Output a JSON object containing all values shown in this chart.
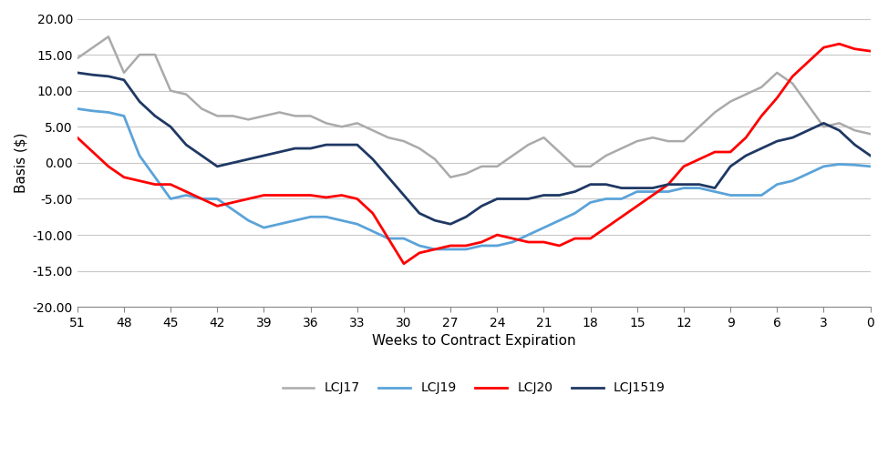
{
  "weeks": [
    51,
    50,
    49,
    48,
    47,
    46,
    45,
    44,
    43,
    42,
    41,
    40,
    39,
    38,
    37,
    36,
    35,
    34,
    33,
    32,
    31,
    30,
    29,
    28,
    27,
    26,
    25,
    24,
    23,
    22,
    21,
    20,
    19,
    18,
    17,
    16,
    15,
    14,
    13,
    12,
    11,
    10,
    9,
    8,
    7,
    6,
    5,
    4,
    3,
    2,
    1,
    0
  ],
  "LCJ17": [
    14.5,
    16.0,
    17.5,
    12.5,
    15.0,
    15.0,
    10.0,
    9.5,
    7.5,
    6.5,
    6.5,
    6.0,
    6.5,
    7.0,
    6.5,
    6.5,
    5.5,
    5.0,
    5.5,
    4.5,
    3.5,
    3.0,
    2.0,
    0.5,
    -2.0,
    -1.5,
    -0.5,
    -0.5,
    1.0,
    2.5,
    3.5,
    1.5,
    -0.5,
    -0.5,
    1.0,
    2.0,
    3.0,
    3.5,
    3.0,
    3.0,
    5.0,
    7.0,
    8.5,
    9.5,
    10.5,
    12.5,
    11.0,
    8.0,
    5.0,
    5.5,
    4.5,
    4.0
  ],
  "LCJ19": [
    7.5,
    7.2,
    7.0,
    6.5,
    1.0,
    -2.0,
    -5.0,
    -4.5,
    -5.0,
    -5.0,
    -6.5,
    -8.0,
    -9.0,
    -8.5,
    -8.0,
    -7.5,
    -7.5,
    -8.0,
    -8.5,
    -9.5,
    -10.5,
    -10.5,
    -11.5,
    -12.0,
    -12.0,
    -12.0,
    -11.5,
    -11.5,
    -11.0,
    -10.0,
    -9.0,
    -8.0,
    -7.0,
    -5.5,
    -5.0,
    -5.0,
    -4.0,
    -4.0,
    -4.0,
    -3.5,
    -3.5,
    -4.0,
    -4.5,
    -4.5,
    -4.5,
    -3.0,
    -2.5,
    -1.5,
    -0.5,
    -0.2,
    -0.3,
    -0.5
  ],
  "LCJ20": [
    3.5,
    1.5,
    -0.5,
    -2.0,
    -2.5,
    -3.0,
    -3.0,
    -4.0,
    -5.0,
    -6.0,
    -5.5,
    -5.0,
    -4.5,
    -4.5,
    -4.5,
    -4.5,
    -4.8,
    -4.5,
    -5.0,
    -7.0,
    -10.5,
    -14.0,
    -12.5,
    -12.0,
    -11.5,
    -11.5,
    -11.0,
    -10.0,
    -10.5,
    -11.0,
    -11.0,
    -11.5,
    -10.5,
    -10.5,
    -9.0,
    -7.5,
    -6.0,
    -4.5,
    -3.0,
    -0.5,
    0.5,
    1.5,
    1.5,
    3.5,
    6.5,
    9.0,
    12.0,
    14.0,
    16.0,
    16.5,
    15.8,
    15.5
  ],
  "LCJ1519": [
    12.5,
    12.2,
    12.0,
    11.5,
    8.5,
    6.5,
    5.0,
    2.5,
    1.0,
    -0.5,
    0.0,
    0.5,
    1.0,
    1.5,
    2.0,
    2.0,
    2.5,
    2.5,
    2.5,
    0.5,
    -2.0,
    -4.5,
    -7.0,
    -8.0,
    -8.5,
    -7.5,
    -6.0,
    -5.0,
    -5.0,
    -5.0,
    -4.5,
    -4.5,
    -4.0,
    -3.0,
    -3.0,
    -3.5,
    -3.5,
    -3.5,
    -3.0,
    -3.0,
    -3.0,
    -3.5,
    -0.5,
    1.0,
    2.0,
    3.0,
    3.5,
    4.5,
    5.5,
    4.5,
    2.5,
    1.0
  ],
  "colors": {
    "LCJ17": "#aaaaaa",
    "LCJ19": "#5ba3d9",
    "LCJ20": "#ff0000",
    "LCJ1519": "#1f3864"
  },
  "tick_weeks": [
    51,
    48,
    45,
    42,
    39,
    36,
    33,
    30,
    27,
    24,
    21,
    18,
    15,
    12,
    9,
    6,
    3,
    0
  ],
  "ylim": [
    -20.0,
    20.0
  ],
  "yticks": [
    -20.0,
    -15.0,
    -10.0,
    -5.0,
    0.0,
    5.0,
    10.0,
    15.0,
    20.0
  ],
  "xlabel": "Weeks to Contract Expiration",
  "ylabel": "Basis ($)",
  "background_color": "#ffffff",
  "grid_color": "#c8c8c8"
}
